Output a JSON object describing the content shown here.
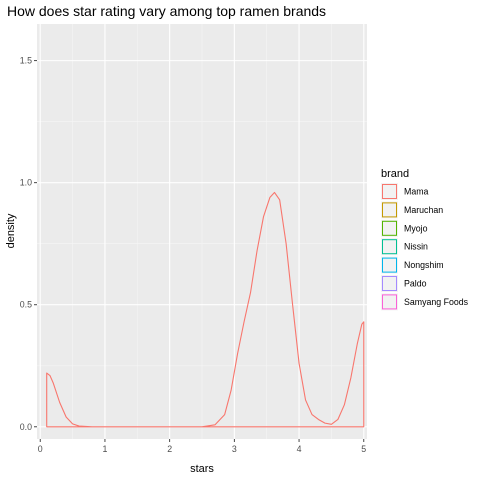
{
  "chart_data": {
    "type": "line",
    "subtype": "density",
    "title": "How does star rating vary among top ramen brands",
    "xlabel": "stars",
    "ylabel": "density",
    "xlim": [
      -0.05,
      5.05
    ],
    "ylim": [
      -0.05,
      1.65
    ],
    "x_ticks": [
      0,
      1,
      2,
      3,
      4,
      5
    ],
    "x_tick_labels": [
      "0",
      "1",
      "2",
      "3",
      "4",
      "5"
    ],
    "y_ticks": [
      0,
      0.5,
      1,
      1.5
    ],
    "y_tick_labels": [
      "0.0",
      "0.5",
      "1.0",
      "1.5"
    ],
    "grid": true,
    "legend": {
      "title": "brand",
      "position": "right",
      "entries": [
        {
          "name": "Mama",
          "color": "#F8766D"
        },
        {
          "name": "Maruchan",
          "color": "#C49A00"
        },
        {
          "name": "Myojo",
          "color": "#53B400"
        },
        {
          "name": "Nissin",
          "color": "#00C094"
        },
        {
          "name": "Nongshim",
          "color": "#00B6EB"
        },
        {
          "name": "Paldo",
          "color": "#A58AFF"
        },
        {
          "name": "Samyang Foods",
          "color": "#FB61D7"
        }
      ]
    },
    "series": [
      {
        "name": "Mama",
        "color": "#F8766D",
        "x": [
          0.1,
          0.15,
          0.2,
          0.3,
          0.4,
          0.5,
          0.6,
          0.8,
          1.0,
          1.5,
          2.0,
          2.5,
          2.7,
          2.85,
          2.95,
          3.05,
          3.15,
          3.25,
          3.35,
          3.45,
          3.55,
          3.62,
          3.7,
          3.8,
          3.9,
          4.0,
          4.1,
          4.2,
          4.3,
          4.4,
          4.5,
          4.6,
          4.7,
          4.8,
          4.9,
          4.97,
          5.0
        ],
        "values": [
          0.22,
          0.21,
          0.18,
          0.1,
          0.04,
          0.012,
          0.003,
          0.0,
          0.0,
          0.0,
          0.0,
          0.0,
          0.008,
          0.05,
          0.15,
          0.3,
          0.43,
          0.55,
          0.72,
          0.86,
          0.94,
          0.96,
          0.93,
          0.75,
          0.5,
          0.26,
          0.11,
          0.05,
          0.03,
          0.015,
          0.01,
          0.03,
          0.09,
          0.2,
          0.34,
          0.42,
          0.43
        ]
      }
    ]
  }
}
